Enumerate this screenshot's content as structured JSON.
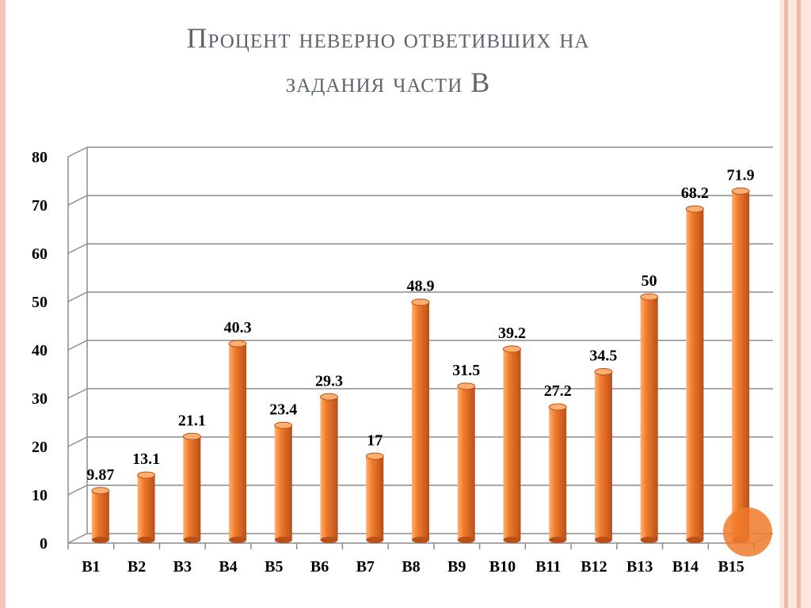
{
  "slide": {
    "title_line1": "Процент неверно ответивших на",
    "title_line2": "задания части В"
  },
  "colors": {
    "bar_light": "#ffb070",
    "bar_main": "#f07a2a",
    "bar_dark": "#b8501a",
    "grid": "#8c8c8c",
    "marker": "#f07a2a"
  },
  "chart_data": {
    "type": "bar",
    "categories": [
      "B1",
      "B2",
      "B3",
      "B4",
      "B5",
      "B6",
      "B7",
      "B8",
      "B9",
      "B10",
      "B11",
      "B12",
      "B13",
      "B14",
      "B15"
    ],
    "values": [
      9.87,
      13.1,
      21.1,
      40.3,
      23.4,
      29.3,
      17,
      48.9,
      31.5,
      39.2,
      27.2,
      34.5,
      50,
      68.2,
      71.9
    ],
    "data_labels": [
      "9.87",
      "13.1",
      "21.1",
      "40.3",
      "23.4",
      "29.3",
      "17",
      "48.9",
      "31.5",
      "39.2",
      "27.2",
      "34.5",
      "50",
      "68.2",
      "71.9"
    ],
    "y_ticks": [
      "0",
      "10",
      "20",
      "30",
      "40",
      "50",
      "60",
      "70",
      "80"
    ],
    "ylim": [
      0,
      80
    ],
    "grid": true,
    "legend": "none",
    "style": "3d-cylinder"
  }
}
